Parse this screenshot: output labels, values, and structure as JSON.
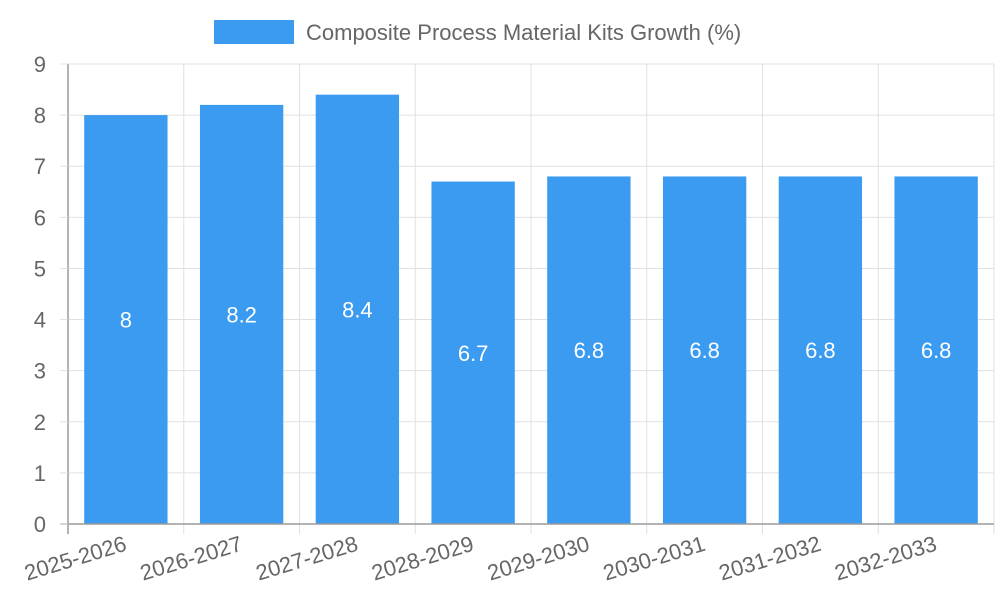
{
  "chart_data": {
    "type": "bar",
    "legend": {
      "label": "Composite Process Material Kits Growth (%)",
      "position": "top-center"
    },
    "categories": [
      "2025-2026",
      "2026-2027",
      "2027-2028",
      "2028-2029",
      "2029-2030",
      "2030-2031",
      "2031-2032",
      "2032-2033"
    ],
    "series": [
      {
        "name": "Composite Process Material Kits Growth (%)",
        "values": [
          8,
          8.2,
          8.4,
          6.7,
          6.8,
          6.8,
          6.8,
          6.8
        ],
        "color": "#3a9bf0"
      }
    ],
    "data_labels": [
      "8",
      "8.2",
      "8.4",
      "6.7",
      "6.8",
      "6.8",
      "6.8",
      "6.8"
    ],
    "ylim": [
      0,
      9
    ],
    "y_ticks": [
      0,
      1,
      2,
      3,
      4,
      5,
      6,
      7,
      8,
      9
    ],
    "grid": true,
    "colors": {
      "bar": "#3a9bf0",
      "grid": "#e0e0e0",
      "axis": "#9a9a9a",
      "tick_text": "#666666",
      "data_label": "#ffffff"
    }
  }
}
